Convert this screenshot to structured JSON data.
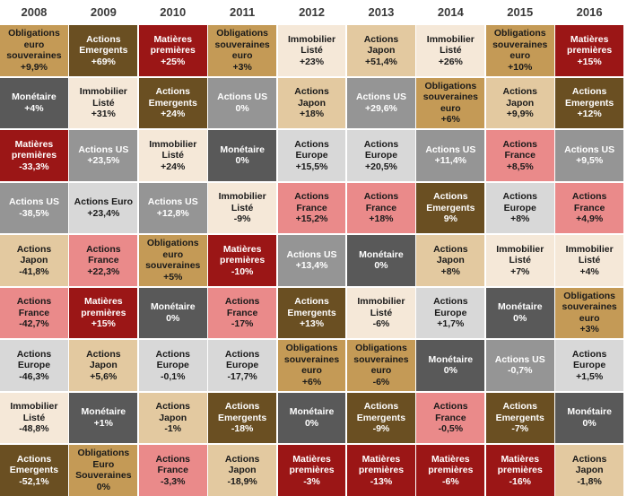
{
  "chart_data": {
    "type": "table",
    "title": "",
    "years": [
      "2008",
      "2009",
      "2010",
      "2011",
      "2012",
      "2013",
      "2014",
      "2015",
      "2016"
    ],
    "columns": [
      [
        {
          "asset": "Obligations euro souveraines",
          "value": "+9,9%",
          "cat": "oblig"
        },
        {
          "asset": "Monétaire",
          "value": "+4%",
          "cat": "mon"
        },
        {
          "asset": "Matières premières",
          "value": "-33,3%",
          "cat": "mp"
        },
        {
          "asset": "Actions US",
          "value": "-38,5%",
          "cat": "us"
        },
        {
          "asset": "Actions Japon",
          "value": "-41,8%",
          "cat": "jp"
        },
        {
          "asset": "Actions France",
          "value": "-42,7%",
          "cat": "fr"
        },
        {
          "asset": "Actions Europe",
          "value": "-46,3%",
          "cat": "eu"
        },
        {
          "asset": "Immobilier Listé",
          "value": "-48,8%",
          "cat": "imm"
        },
        {
          "asset": "Actions Emergents",
          "value": "-52,1%",
          "cat": "em"
        }
      ],
      [
        {
          "asset": "Actions Emergents",
          "value": "+69%",
          "cat": "em"
        },
        {
          "asset": "Immobilier Listé",
          "value": "+31%",
          "cat": "imm"
        },
        {
          "asset": "Actions US",
          "value": "+23,5%",
          "cat": "us"
        },
        {
          "asset": "Actions Euro",
          "value": "+23,4%",
          "cat": "eu"
        },
        {
          "asset": "Actions France",
          "value": "+22,3%",
          "cat": "fr"
        },
        {
          "asset": "Matières premières",
          "value": "+15%",
          "cat": "mp"
        },
        {
          "asset": "Actions Japon",
          "value": "+5,6%",
          "cat": "jp"
        },
        {
          "asset": "Monétaire",
          "value": "+1%",
          "cat": "mon"
        },
        {
          "asset": "Obligations Euro Souveraines",
          "value": "0%",
          "cat": "oblig"
        }
      ],
      [
        {
          "asset": "Matières premières",
          "value": "+25%",
          "cat": "mp"
        },
        {
          "asset": "Actions Emergents",
          "value": "+24%",
          "cat": "em"
        },
        {
          "asset": "Immobilier Listé",
          "value": "+24%",
          "cat": "imm"
        },
        {
          "asset": "Actions US",
          "value": "+12,8%",
          "cat": "us"
        },
        {
          "asset": "Obligations euro souveraines",
          "value": "+5%",
          "cat": "oblig"
        },
        {
          "asset": "Monétaire",
          "value": "0%",
          "cat": "mon"
        },
        {
          "asset": "Actions Europe",
          "value": "-0,1%",
          "cat": "eu"
        },
        {
          "asset": "Actions Japon",
          "value": "-1%",
          "cat": "jp"
        },
        {
          "asset": "Actions France",
          "value": "-3,3%",
          "cat": "fr"
        }
      ],
      [
        {
          "asset": "Obligations souveraines euro",
          "value": "+3%",
          "cat": "oblig"
        },
        {
          "asset": "Actions US",
          "value": "0%",
          "cat": "us"
        },
        {
          "asset": "Monétaire",
          "value": "0%",
          "cat": "mon"
        },
        {
          "asset": "Immobilier Listé",
          "value": "-9%",
          "cat": "imm"
        },
        {
          "asset": "Matières premières",
          "value": "-10%",
          "cat": "mp"
        },
        {
          "asset": "Actions France",
          "value": "-17%",
          "cat": "fr"
        },
        {
          "asset": "Actions Europe",
          "value": "-17,7%",
          "cat": "eu"
        },
        {
          "asset": "Actions Emergents",
          "value": "-18%",
          "cat": "em"
        },
        {
          "asset": "Actions Japon",
          "value": "-18,9%",
          "cat": "jp"
        }
      ],
      [
        {
          "asset": "Immobilier Listé",
          "value": "+23%",
          "cat": "imm"
        },
        {
          "asset": "Actions Japon",
          "value": "+18%",
          "cat": "jp"
        },
        {
          "asset": "Actions Europe",
          "value": "+15,5%",
          "cat": "eu"
        },
        {
          "asset": "Actions France",
          "value": "+15,2%",
          "cat": "fr"
        },
        {
          "asset": "Actions US",
          "value": "+13,4%",
          "cat": "us"
        },
        {
          "asset": "Actions Emergents",
          "value": "+13%",
          "cat": "em"
        },
        {
          "asset": "Obligations souveraines euro",
          "value": "+6%",
          "cat": "oblig"
        },
        {
          "asset": "Monétaire",
          "value": "0%",
          "cat": "mon"
        },
        {
          "asset": "Matières premières",
          "value": "-3%",
          "cat": "mp"
        }
      ],
      [
        {
          "asset": "Actions Japon",
          "value": "+51,4%",
          "cat": "jp"
        },
        {
          "asset": "Actions US",
          "value": "+29,6%",
          "cat": "us"
        },
        {
          "asset": "Actions Europe",
          "value": "+20,5%",
          "cat": "eu"
        },
        {
          "asset": "Actions France",
          "value": "+18%",
          "cat": "fr"
        },
        {
          "asset": "Monétaire",
          "value": "0%",
          "cat": "mon"
        },
        {
          "asset": "Immobilier Listé",
          "value": "-6%",
          "cat": "imm"
        },
        {
          "asset": "Obligations souveraines euro",
          "value": "-6%",
          "cat": "oblig"
        },
        {
          "asset": "Actions Emergents",
          "value": "-9%",
          "cat": "em"
        },
        {
          "asset": "Matières premières",
          "value": "-13%",
          "cat": "mp"
        }
      ],
      [
        {
          "asset": "Immobilier Listé",
          "value": "+26%",
          "cat": "imm"
        },
        {
          "asset": "Obligations souveraines euro",
          "value": "+6%",
          "cat": "oblig"
        },
        {
          "asset": "Actions US",
          "value": "+11,4%",
          "cat": "us"
        },
        {
          "asset": "Actions Emergents",
          "value": "9%",
          "cat": "em"
        },
        {
          "asset": "Actions Japon",
          "value": "+8%",
          "cat": "jp"
        },
        {
          "asset": "Actions Europe",
          "value": "+1,7%",
          "cat": "eu"
        },
        {
          "asset": "Monétaire",
          "value": "0%",
          "cat": "mon"
        },
        {
          "asset": "Actions France",
          "value": "-0,5%",
          "cat": "fr"
        },
        {
          "asset": "Matières premières",
          "value": "-6%",
          "cat": "mp"
        }
      ],
      [
        {
          "asset": "Obligations souveraines euro",
          "value": "+10%",
          "cat": "oblig"
        },
        {
          "asset": "Actions Japon",
          "value": "+9,9%",
          "cat": "jp"
        },
        {
          "asset": "Actions France",
          "value": "+8,5%",
          "cat": "fr"
        },
        {
          "asset": "Actions Europe",
          "value": "+8%",
          "cat": "eu"
        },
        {
          "asset": "Immobilier Listé",
          "value": "+7%",
          "cat": "imm"
        },
        {
          "asset": "Monétaire",
          "value": "0%",
          "cat": "mon"
        },
        {
          "asset": "Actions US",
          "value": "-0,7%",
          "cat": "us"
        },
        {
          "asset": "Actions Emergents",
          "value": "-7%",
          "cat": "em"
        },
        {
          "asset": "Matières premières",
          "value": "-16%",
          "cat": "mp"
        }
      ],
      [
        {
          "asset": "Matières premières",
          "value": "+15%",
          "cat": "mp"
        },
        {
          "asset": "Actions Emergents",
          "value": "+12%",
          "cat": "em"
        },
        {
          "asset": "Actions US",
          "value": "+9,5%",
          "cat": "us"
        },
        {
          "asset": "Actions France",
          "value": "+4,9%",
          "cat": "fr"
        },
        {
          "asset": "Immobilier Listé",
          "value": "+4%",
          "cat": "imm"
        },
        {
          "asset": "Obligations souveraines euro",
          "value": "+3%",
          "cat": "oblig"
        },
        {
          "asset": "Actions Europe",
          "value": "+1,5%",
          "cat": "eu"
        },
        {
          "asset": "Monétaire",
          "value": "0%",
          "cat": "mon"
        },
        {
          "asset": "Actions Japon",
          "value": "-1,8%",
          "cat": "jp"
        }
      ]
    ],
    "colors": {
      "oblig": {
        "bg": "#c49a56",
        "fg": "#1a1a1a"
      },
      "mon": {
        "bg": "#595959",
        "fg": "#ffffff"
      },
      "mp": {
        "bg": "#9b1616",
        "fg": "#ffffff"
      },
      "us": {
        "bg": "#959595",
        "fg": "#ffffff"
      },
      "jp": {
        "bg": "#e3c9a0",
        "fg": "#1a1a1a"
      },
      "fr": {
        "bg": "#ea8a8a",
        "fg": "#1a1a1a"
      },
      "eu": {
        "bg": "#d8d8d8",
        "fg": "#1a1a1a"
      },
      "imm": {
        "bg": "#f5e8d8",
        "fg": "#1a1a1a"
      },
      "em": {
        "bg": "#6a4f22",
        "fg": "#ffffff"
      }
    }
  }
}
